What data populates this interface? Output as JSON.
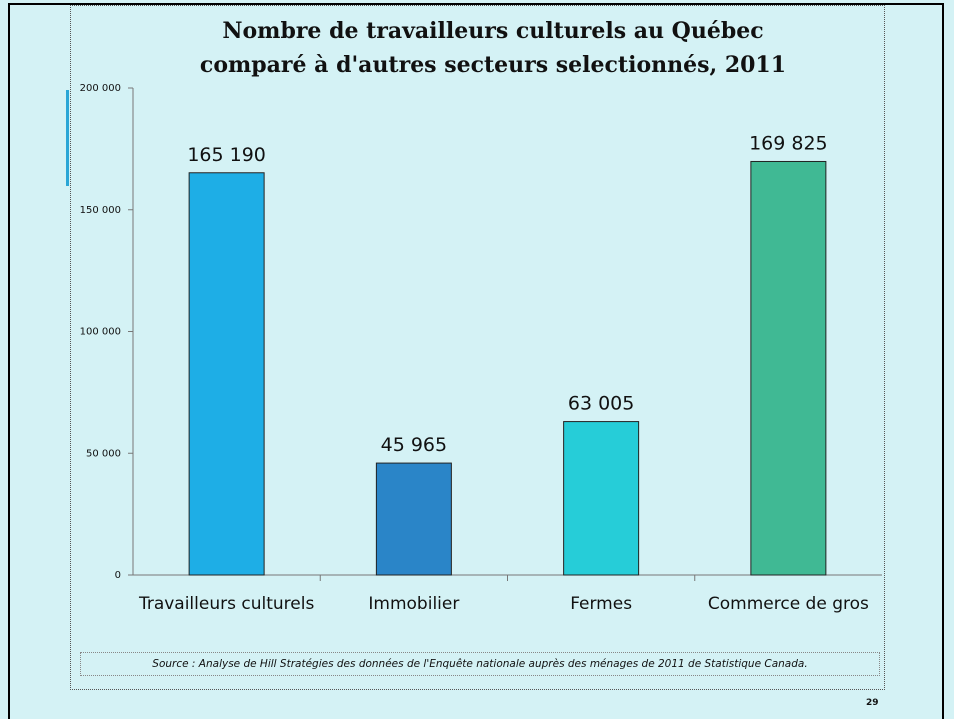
{
  "chart_data": {
    "type": "bar",
    "title": [
      "Nombre de travailleurs culturels au Québec",
      "comparé à d'autres secteurs selectionnés, 2011"
    ],
    "categories": [
      "Travailleurs culturels",
      "Immobilier",
      "Fermes",
      "Commerce de gros"
    ],
    "values": [
      165190,
      45965,
      63005,
      169825
    ],
    "value_labels": [
      "165 190",
      "45 965",
      "63 005",
      "169 825"
    ],
    "colors": [
      "#1eaee6",
      "#2a85c8",
      "#26cdd8",
      "#40b994"
    ],
    "ylim": [
      0,
      200000
    ],
    "yticks": [
      0,
      {
        "value": 50000,
        "label": "50 000"
      },
      {
        "value": 100000,
        "label": "100 000"
      },
      {
        "value": 150000,
        "label": "150 000"
      },
      {
        "value": 200000,
        "label": "200 000"
      }
    ],
    "grid": false,
    "source": "Source : Analyse de Hill Stratégies des données de l'Enquête nationale auprès des ménages de 2011 de Statistique Canada."
  },
  "page_number": "29"
}
